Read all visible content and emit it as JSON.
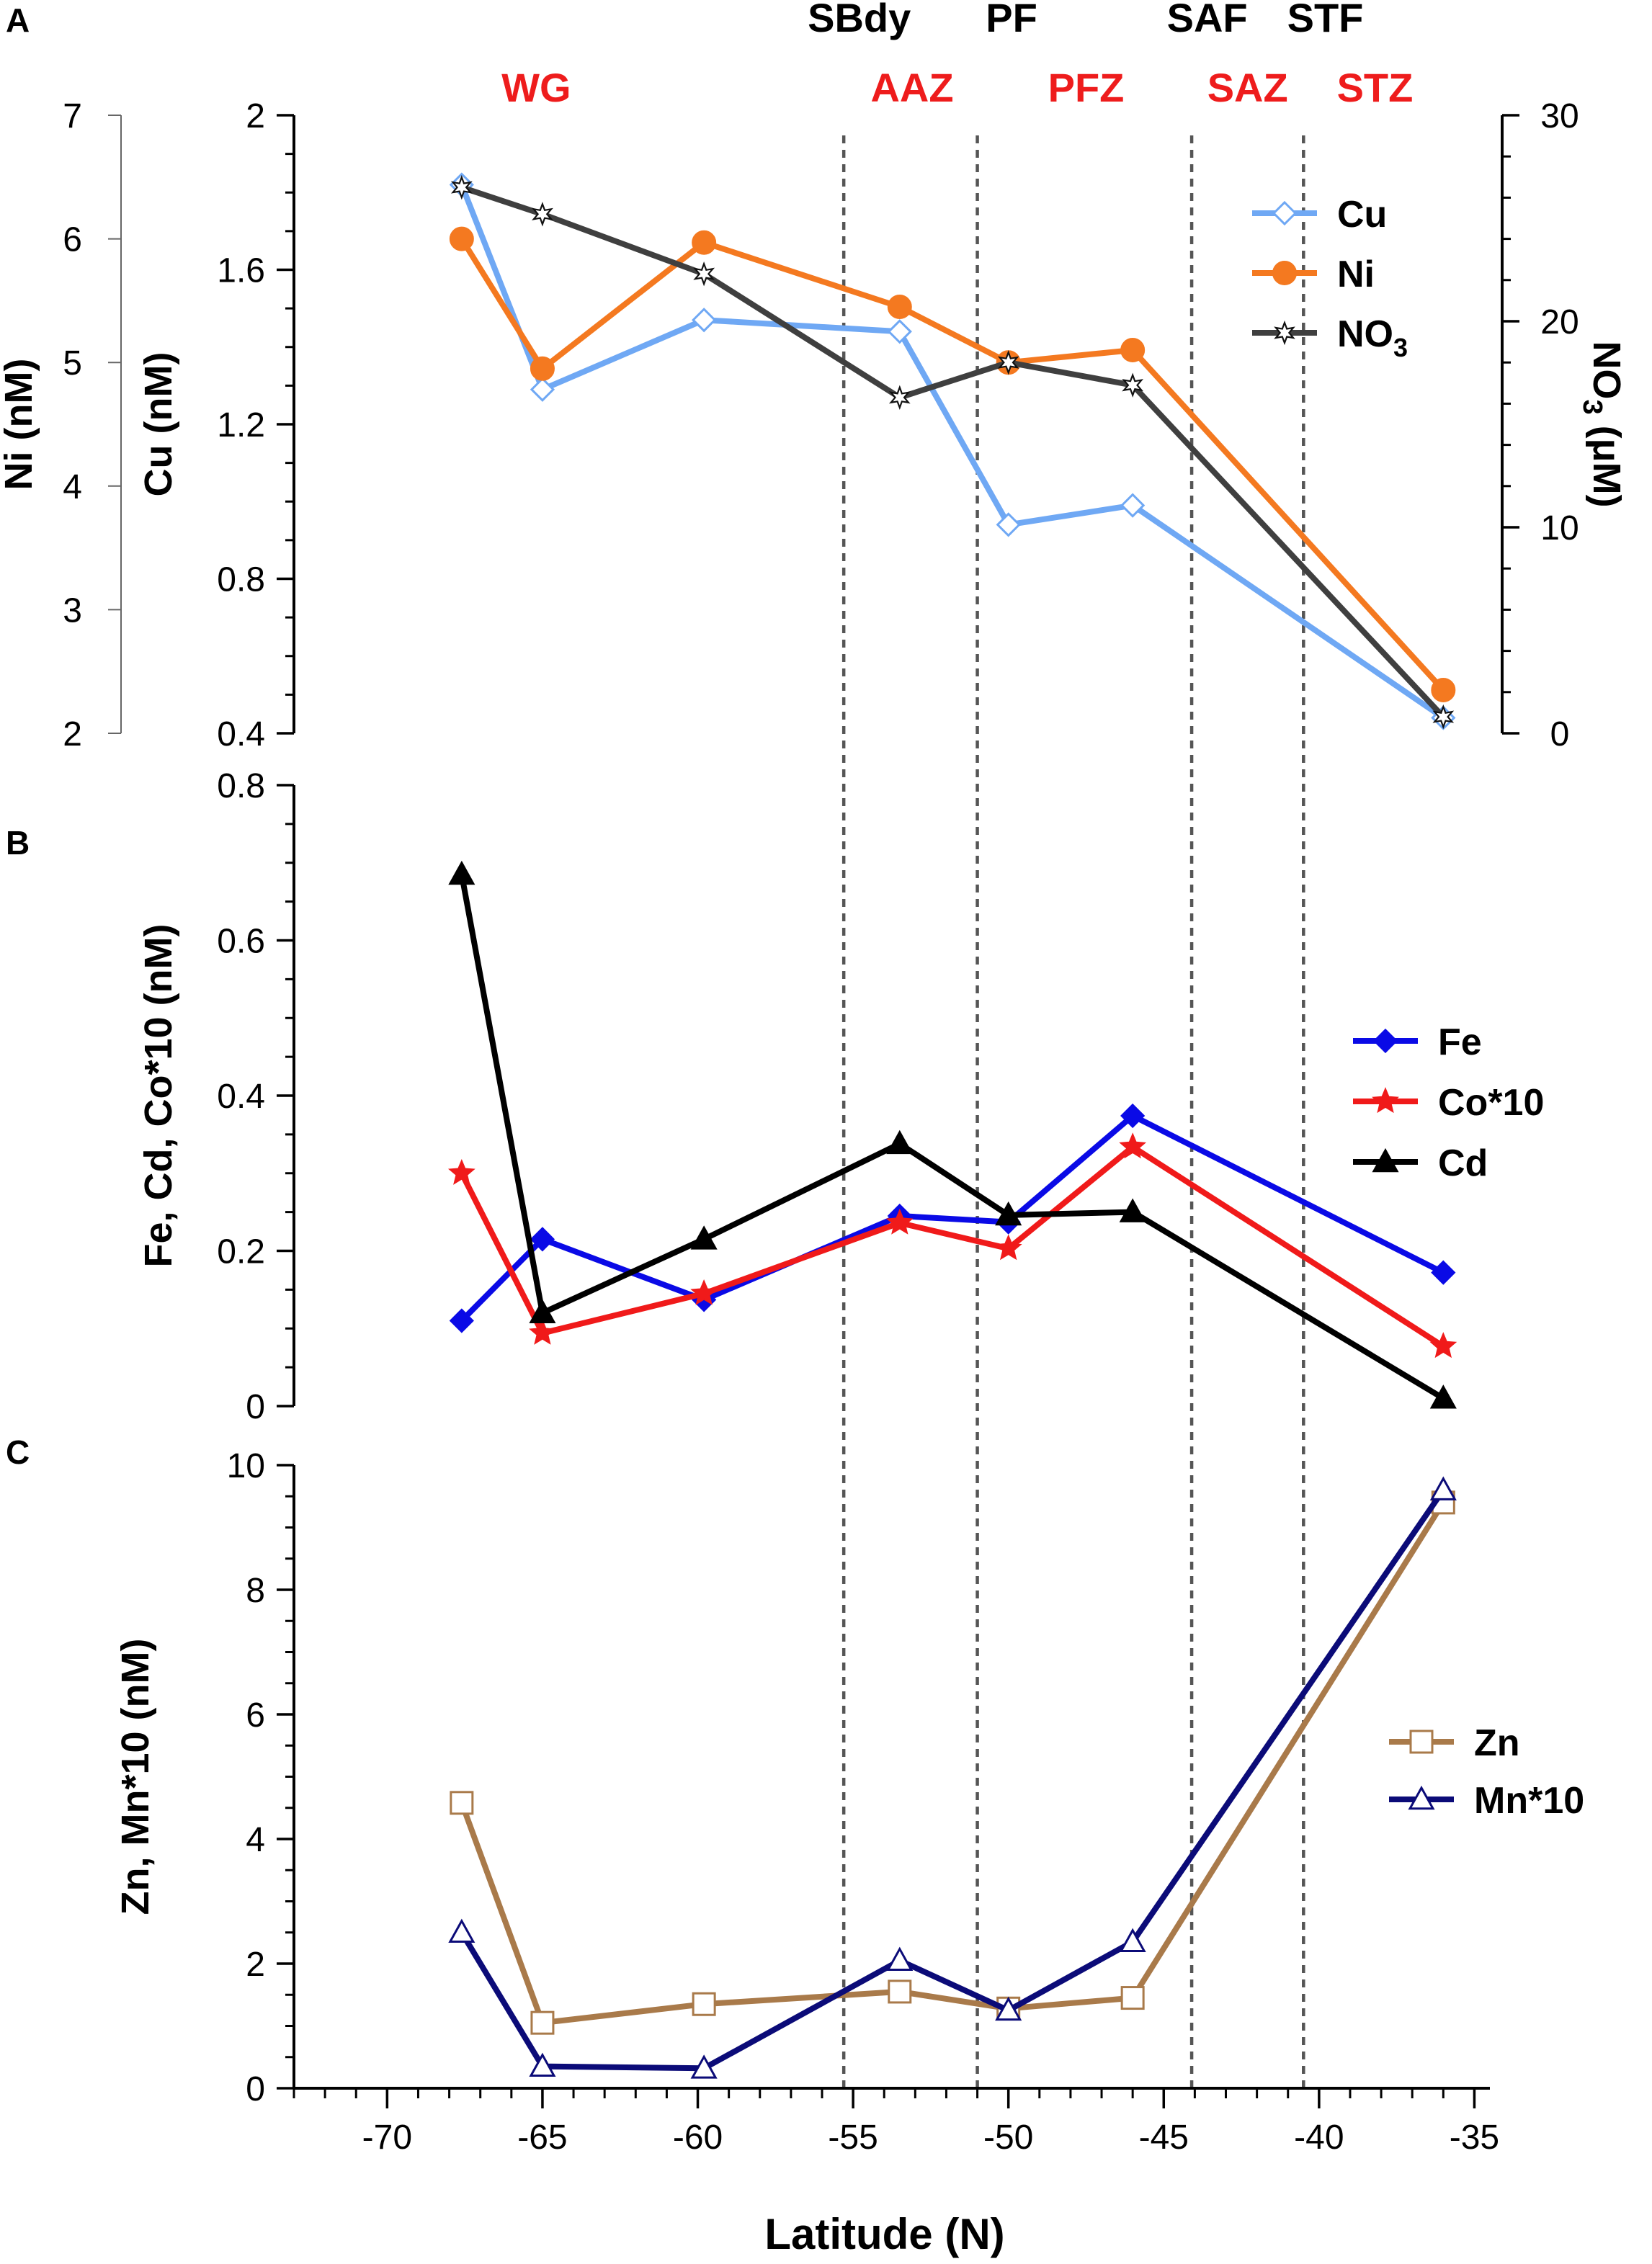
{
  "x_axis": {
    "label": "Latitude (N)",
    "ticks": [
      {
        "value": -70,
        "label": "-70"
      },
      {
        "value": -65,
        "label": "-65"
      },
      {
        "value": -60,
        "label": "-60"
      },
      {
        "value": -55,
        "label": "-55"
      },
      {
        "value": -50,
        "label": "-50"
      },
      {
        "value": -45,
        "label": "-45"
      },
      {
        "value": -40,
        "label": "-40"
      },
      {
        "value": -35,
        "label": "-35"
      }
    ],
    "xlim": [
      -73,
      -34.5
    ],
    "minor_step": 1
  },
  "fronts": [
    {
      "label": "SBdy",
      "value": -55.3
    },
    {
      "label": "PF",
      "value": -51.0
    },
    {
      "label": "SAF",
      "value": -44.1
    },
    {
      "label": "STF",
      "value": -40.5
    }
  ],
  "front_label_positions": [
    {
      "label": "SBdy",
      "value": -54.8
    },
    {
      "label": "PF",
      "value": -49.9
    },
    {
      "label": "SAF",
      "value": -43.6
    },
    {
      "label": "STF",
      "value": -39.8
    }
  ],
  "zones": [
    {
      "label": "WG",
      "value": -65.2
    },
    {
      "label": "AAZ",
      "value": -53.1
    },
    {
      "label": "PFZ",
      "value": -47.5
    },
    {
      "label": "SAZ",
      "value": -42.3
    },
    {
      "label": "STZ",
      "value": -38.2
    }
  ],
  "colors": {
    "cu": "#6fa8f4",
    "ni": "#f47920",
    "no3": "#3f3f3f",
    "fe": "#0a0ae6",
    "co": "#f01a1a",
    "cd": "#000000",
    "zn": "#a97a4a",
    "mn": "#0b0b78",
    "zone_label": "#ee1c1c",
    "front_label": "#000000",
    "front_line": "#555555"
  },
  "chart_data": [
    {
      "panel": "A",
      "type": "line",
      "title": "",
      "xlabel": "",
      "ylabel": "Cu (nM)",
      "ylim": [
        0.4,
        2.0
      ],
      "yticks": [
        {
          "value": 0.4,
          "label": "0.4"
        },
        {
          "value": 0.8,
          "label": "0.8"
        },
        {
          "value": 1.2,
          "label": "1.2"
        },
        {
          "value": 1.6,
          "label": "1.6"
        },
        {
          "value": 2.0,
          "label": "2"
        }
      ],
      "y_minor_step": 0.1,
      "ni_axis": {
        "label": "Ni (nM)",
        "ylim": [
          2,
          7
        ],
        "ticks": [
          {
            "value": 2,
            "label": "2"
          },
          {
            "value": 3,
            "label": "3"
          },
          {
            "value": 4,
            "label": "4"
          },
          {
            "value": 5,
            "label": "5"
          },
          {
            "value": 6,
            "label": "6"
          },
          {
            "value": 7,
            "label": "7"
          }
        ]
      },
      "right_axis": {
        "label_main": "NO",
        "label_sub": "3",
        "label_unit": " (μM)",
        "ylim": [
          0,
          30
        ],
        "ticks": [
          {
            "value": 0,
            "label": "0"
          },
          {
            "value": 10,
            "label": "10"
          },
          {
            "value": 20,
            "label": "20"
          },
          {
            "value": 30,
            "label": "30"
          }
        ],
        "minor_step": 2
      },
      "series": [
        {
          "name": "Cu",
          "axis": "left",
          "marker": "diamond-open",
          "color_key": "cu",
          "x": [
            -67.6,
            -65.0,
            -59.8,
            -53.5,
            -50.0,
            -46.0,
            -36.0
          ],
          "y": [
            1.82,
            1.29,
            1.47,
            1.44,
            0.94,
            0.99,
            0.44
          ]
        },
        {
          "name": "Ni",
          "axis": "ni",
          "marker": "circle-filled",
          "color_key": "ni",
          "x": [
            -67.6,
            -65.0,
            -59.8,
            -53.5,
            -50.0,
            -46.0,
            -36.0
          ],
          "y": [
            6.0,
            4.95,
            5.97,
            5.45,
            5.0,
            5.1,
            2.35
          ]
        },
        {
          "name": "NO",
          "name_sub": "3",
          "axis": "right",
          "marker": "star-open",
          "color_key": "no3",
          "x": [
            -67.6,
            -65.0,
            -59.8,
            -53.5,
            -50.0,
            -46.0,
            -36.0
          ],
          "y": [
            26.5,
            25.2,
            22.3,
            16.3,
            18.0,
            16.9,
            0.8
          ]
        }
      ],
      "legend": {
        "placement": "top-right",
        "entries": [
          "Cu",
          "Ni",
          "NO"
        ],
        "sub": [
          "",
          "",
          "3"
        ]
      }
    },
    {
      "panel": "B",
      "type": "line",
      "title": "",
      "xlabel": "",
      "ylabel": "Fe, Cd, Co*10 (nM)",
      "ylim": [
        0,
        0.8
      ],
      "yticks": [
        {
          "value": 0,
          "label": "0"
        },
        {
          "value": 0.2,
          "label": "0.2"
        },
        {
          "value": 0.4,
          "label": "0.4"
        },
        {
          "value": 0.6,
          "label": "0.6"
        },
        {
          "value": 0.8,
          "label": "0.8"
        }
      ],
      "y_minor_step": 0.05,
      "series": [
        {
          "name": "Fe",
          "marker": "diamond-filled",
          "color_key": "fe",
          "x": [
            -67.6,
            -65.0,
            -59.8,
            -53.5,
            -50.0,
            -46.0,
            -36.0
          ],
          "y": [
            0.11,
            0.215,
            0.137,
            0.245,
            0.237,
            0.374,
            0.172
          ]
        },
        {
          "name": "Co*10",
          "marker": "star-filled",
          "color_key": "co",
          "x": [
            -67.6,
            -65.0,
            -59.8,
            -53.5,
            -50.0,
            -46.0,
            -36.0
          ],
          "y": [
            0.3,
            0.094,
            0.145,
            0.236,
            0.203,
            0.334,
            0.077
          ]
        },
        {
          "name": "Cd",
          "marker": "triangle-filled",
          "color_key": "cd",
          "x": [
            -67.6,
            -65.0,
            -59.8,
            -53.5,
            -50.0,
            -46.0,
            -36.0
          ],
          "y": [
            0.685,
            0.12,
            0.215,
            0.338,
            0.246,
            0.25,
            0.01
          ]
        }
      ],
      "legend": {
        "placement": "middle-right",
        "entries": [
          "Fe",
          "Co*10",
          "Cd"
        ]
      }
    },
    {
      "panel": "C",
      "type": "line",
      "title": "",
      "xlabel": "Latitude (N)",
      "ylabel": "Zn, Mn*10 (nM)",
      "ylim": [
        0,
        10
      ],
      "yticks": [
        {
          "value": 0,
          "label": "0"
        },
        {
          "value": 2,
          "label": "2"
        },
        {
          "value": 4,
          "label": "4"
        },
        {
          "value": 6,
          "label": "6"
        },
        {
          "value": 8,
          "label": "8"
        },
        {
          "value": 10,
          "label": "10"
        }
      ],
      "y_minor_step": 0.5,
      "series": [
        {
          "name": "Zn",
          "marker": "square-open",
          "color_key": "zn",
          "x": [
            -67.6,
            -65.0,
            -59.8,
            -53.5,
            -50.0,
            -46.0,
            -36.0
          ],
          "y": [
            4.58,
            1.05,
            1.35,
            1.55,
            1.28,
            1.45,
            9.4
          ]
        },
        {
          "name": "Mn*10",
          "marker": "triangle-open",
          "color_key": "mn",
          "x": [
            -67.6,
            -65.0,
            -59.8,
            -53.5,
            -50.0,
            -46.0,
            -36.0
          ],
          "y": [
            2.5,
            0.35,
            0.32,
            2.05,
            1.25,
            2.35,
            9.6
          ]
        }
      ],
      "legend": {
        "placement": "lower-right",
        "entries": [
          "Zn",
          "Mn*10"
        ]
      }
    }
  ],
  "panel_letters": [
    "A",
    "B",
    "C"
  ]
}
